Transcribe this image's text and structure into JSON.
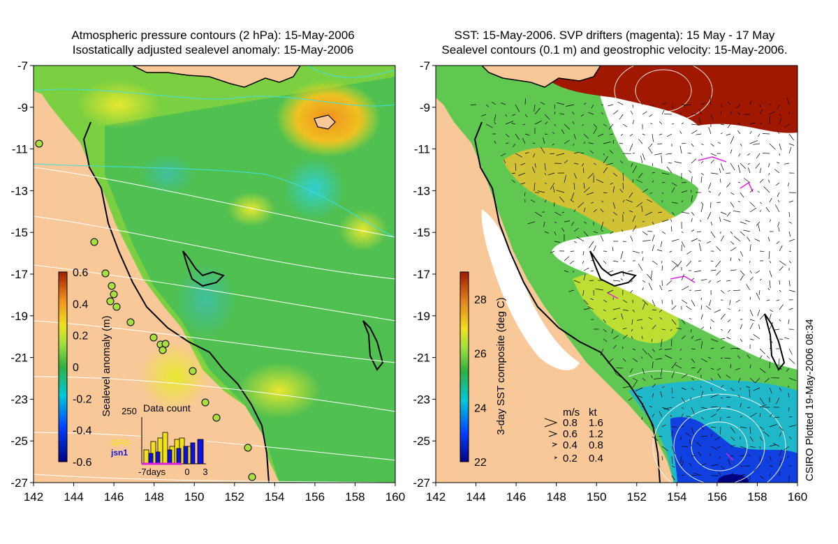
{
  "left_panel": {
    "title_line1": "Atmospheric pressure contours (2 hPa): 15-May-2006",
    "title_line2": "Isostatically adjusted sealevel anomaly: 15-May-2006",
    "colorbar_label": "Sealevel anomaly (m)",
    "colorbar_ticks": [
      "0.6",
      "0.4",
      "0.2",
      "0",
      "-0.2",
      "-0.4",
      "-0.6"
    ],
    "colorbar_range": [
      -0.6,
      0.6
    ],
    "inset": {
      "title": "Data count",
      "y_tick": "250",
      "x_ticks": [
        "-7days",
        "0",
        "3"
      ],
      "series": [
        {
          "name": "GFO",
          "color": "#f0e020"
        },
        {
          "name": "jsn1",
          "color": "#1010e0"
        }
      ]
    }
  },
  "right_panel": {
    "title_line1": "SST: 15-May-2006. SVP drifters (magenta): 15 May - 17 May",
    "title_line2": "Sealevel contours (0.1 m) and geostrophic velocity: 15-May-2006.",
    "colorbar_label": "3-day SST composite (deg C)",
    "colorbar_ticks": [
      "28",
      "26",
      "24",
      "22"
    ],
    "colorbar_range": [
      22,
      29
    ],
    "velocity_legend": {
      "header_ms": "m/s",
      "header_kt": "kt",
      "rows": [
        {
          "ms": "0.8",
          "kt": "1.6"
        },
        {
          "ms": "0.6",
          "kt": "1.2"
        },
        {
          "ms": "0.4",
          "kt": "0.8"
        },
        {
          "ms": "0.2",
          "kt": "0.4"
        }
      ]
    }
  },
  "axes": {
    "x_ticks": [
      "142",
      "144",
      "146",
      "148",
      "150",
      "152",
      "154",
      "156",
      "158",
      "160"
    ],
    "y_ticks": [
      "-7",
      "-9",
      "-11",
      "-13",
      "-15",
      "-17",
      "-19",
      "-21",
      "-23",
      "-25",
      "-27"
    ],
    "lon_range": [
      142,
      160
    ],
    "lat_range": [
      -27,
      -7
    ]
  },
  "credit": "CSIRO Plotted 19-May-2006 08:34",
  "colors": {
    "land": "#f8c898",
    "ocean_green": "#60c850",
    "cloud": "#ffffff",
    "coastline": "#000000",
    "contour": "#ffffff"
  }
}
